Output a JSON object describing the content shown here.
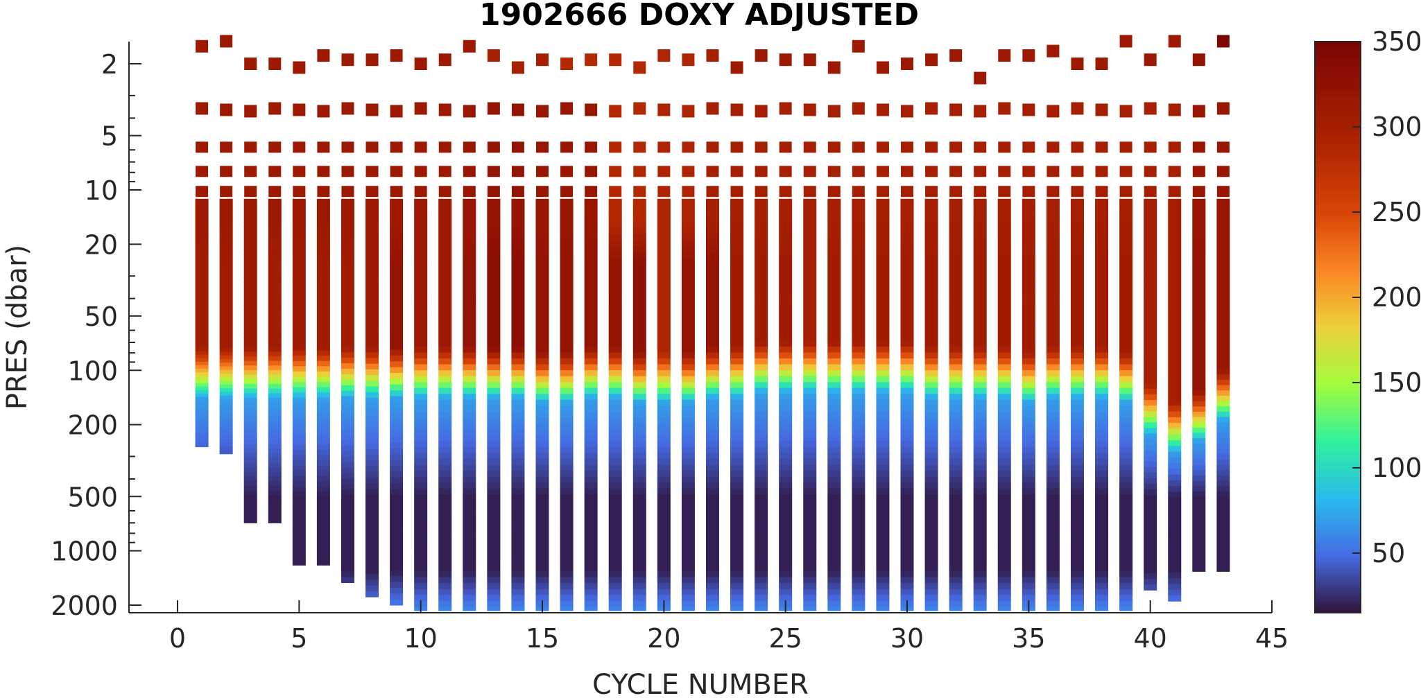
{
  "chart_data": {
    "type": "heatmap",
    "title": "1902666  DOXY ADJUSTED",
    "xlabel": "CYCLE NUMBER",
    "ylabel": "PRES (dbar)",
    "xlim": [
      0,
      45
    ],
    "ylim": [
      1,
      2000
    ],
    "y_scale": "log",
    "y_reversed": true,
    "grid": false,
    "x_ticks": [
      0,
      5,
      10,
      15,
      20,
      25,
      30,
      35,
      40,
      45
    ],
    "y_ticks": [
      2,
      5,
      10,
      20,
      50,
      100,
      200,
      500,
      1000,
      2000
    ],
    "colorbar": {
      "range": [
        15,
        350
      ],
      "ticks": [
        50,
        100,
        150,
        200,
        250,
        300,
        350
      ],
      "colormap": "turbo",
      "placement": "right"
    },
    "cycles": [
      1,
      2,
      3,
      4,
      5,
      6,
      7,
      8,
      9,
      10,
      11,
      12,
      13,
      14,
      15,
      16,
      17,
      18,
      19,
      20,
      21,
      22,
      23,
      24,
      25,
      26,
      27,
      28,
      29,
      30,
      31,
      32,
      33,
      34,
      35,
      36,
      37,
      38,
      39,
      40,
      41,
      42,
      43
    ],
    "max_pres": [
      265,
      290,
      700,
      700,
      1200,
      1200,
      1500,
      1800,
      2000,
      2200,
      2200,
      2200,
      2200,
      2200,
      2200,
      2200,
      2200,
      2200,
      2200,
      2200,
      2200,
      2200,
      2200,
      2200,
      2200,
      2200,
      2200,
      2200,
      2200,
      2200,
      2200,
      2200,
      2200,
      2200,
      2200,
      2200,
      2200,
      2200,
      2200,
      1650,
      1900,
      1300,
      1300
    ],
    "surface_pres": [
      1.6,
      1.5,
      2.0,
      2.0,
      2.1,
      1.8,
      1.9,
      1.9,
      1.8,
      2.0,
      1.9,
      1.6,
      1.8,
      2.1,
      1.9,
      2.0,
      1.9,
      1.9,
      2.1,
      1.8,
      1.9,
      1.8,
      2.1,
      1.8,
      1.9,
      1.9,
      2.1,
      1.6,
      2.1,
      2.0,
      1.9,
      1.8,
      2.4,
      1.8,
      1.8,
      1.7,
      2.0,
      2.0,
      1.5,
      1.9,
      1.5,
      1.9,
      1.5
    ],
    "surface_doxy": [
      310,
      310,
      310,
      310,
      310,
      310,
      310,
      310,
      310,
      310,
      310,
      310,
      300,
      300,
      300,
      285,
      285,
      285,
      285,
      290,
      290,
      300,
      310,
      310,
      310,
      310,
      310,
      310,
      310,
      310,
      310,
      310,
      310,
      310,
      310,
      310,
      310,
      310,
      310,
      310,
      310,
      320,
      345
    ],
    "mixed_doxy": [
      310,
      310,
      310,
      310,
      310,
      310,
      310,
      310,
      310,
      310,
      310,
      315,
      320,
      320,
      315,
      315,
      315,
      285,
      285,
      290,
      290,
      300,
      300,
      300,
      300,
      300,
      300,
      300,
      300,
      300,
      300,
      300,
      300,
      300,
      300,
      300,
      300,
      300,
      300,
      300,
      300,
      315,
      315
    ],
    "subsurface_doxy": [
      305,
      305,
      310,
      305,
      305,
      305,
      305,
      310,
      320,
      310,
      310,
      320,
      330,
      330,
      320,
      320,
      320,
      320,
      325,
      290,
      320,
      320,
      305,
      305,
      305,
      300,
      305,
      305,
      305,
      305,
      305,
      305,
      305,
      305,
      305,
      305,
      305,
      305,
      305,
      300,
      300,
      320,
      315
    ],
    "oxycline_pres": [
      75,
      75,
      75,
      75,
      75,
      75,
      75,
      75,
      75,
      75,
      75,
      75,
      75,
      75,
      80,
      80,
      75,
      75,
      80,
      80,
      80,
      75,
      75,
      70,
      70,
      70,
      70,
      70,
      70,
      70,
      75,
      75,
      75,
      75,
      80,
      75,
      75,
      75,
      80,
      120,
      150,
      130,
      100
    ],
    "deep_max_doxy": [
      70,
      70,
      70,
      70,
      70,
      70,
      70,
      70,
      70,
      70,
      70,
      70,
      70,
      70,
      70,
      70,
      70,
      70,
      70,
      70,
      70,
      70,
      70,
      70,
      70,
      70,
      70,
      70,
      70,
      70,
      70,
      70,
      70,
      70,
      70,
      70,
      70,
      70,
      70,
      70,
      70,
      70,
      70
    ]
  }
}
